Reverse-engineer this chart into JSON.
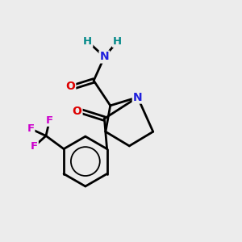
{
  "background_color": "#ececec",
  "atom_colors": {
    "C": "#000000",
    "N": "#2020dd",
    "O": "#dd0000",
    "F": "#cc00cc",
    "H": "#008888"
  },
  "bond_color": "#000000",
  "bond_width": 2.0,
  "figsize": [
    3.0,
    3.0
  ],
  "dpi": 100
}
